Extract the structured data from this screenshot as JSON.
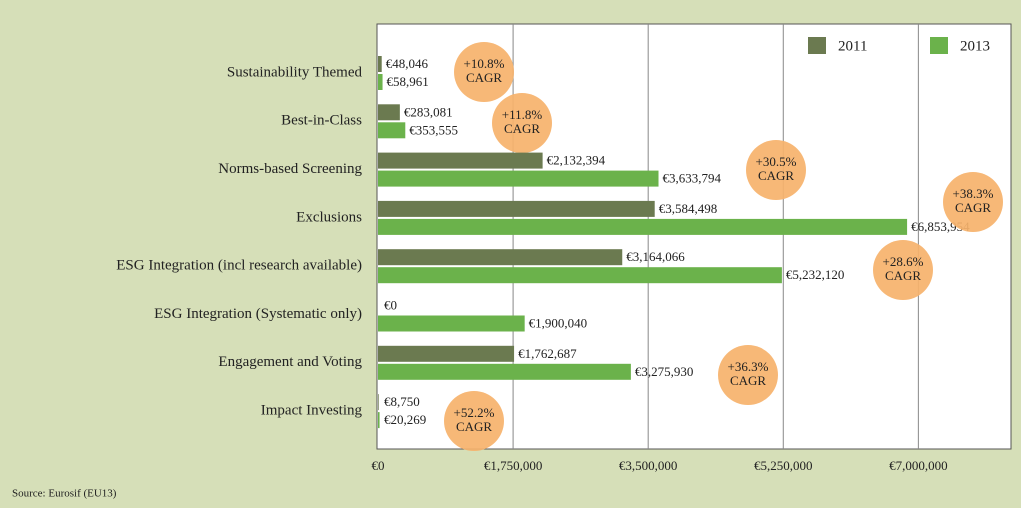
{
  "chart_data": {
    "type": "bar",
    "orientation": "horizontal",
    "categories": [
      "Sustainability Themed",
      "Best-in-Class",
      "Norms-based Screening",
      "Exclusions",
      "ESG Integration (incl research available)",
      "ESG Integration (Systematic only)",
      "Engagement and Voting",
      "Impact Investing"
    ],
    "series": [
      {
        "name": "2011",
        "color": "#6b7a50",
        "values": [
          48046,
          283081,
          2132394,
          3584498,
          3164066,
          0,
          1762687,
          8750
        ],
        "value_labels": [
          "€48,046",
          "€283,081",
          "€2,132,394",
          "€3,584,498",
          "€3,164,066",
          "€0",
          "€1,762,687",
          "€8,750"
        ]
      },
      {
        "name": "2013",
        "color": "#6bb24b",
        "values": [
          58961,
          353555,
          3633794,
          6853954,
          5232120,
          1900040,
          3275930,
          20269
        ],
        "value_labels": [
          "€58,961",
          "€353,555",
          "€3,633,794",
          "€6,853,954",
          "€5,232,120",
          "€1,900,040",
          "€3,275,930",
          "€20,269"
        ]
      }
    ],
    "annotations": [
      {
        "lines": [
          "+10.8%",
          "CAGR"
        ]
      },
      {
        "lines": [
          "+11.8%",
          "CAGR"
        ]
      },
      {
        "lines": [
          "+30.5%",
          "CAGR"
        ]
      },
      {
        "lines": [
          "+38.3%",
          "CAGR"
        ]
      },
      {
        "lines": [
          "+28.6%",
          "CAGR"
        ]
      },
      null,
      {
        "lines": [
          "+36.3%",
          "CAGR"
        ]
      },
      {
        "lines": [
          "+52.2%",
          "CAGR"
        ]
      }
    ],
    "xlim": [
      0,
      8200000
    ],
    "xticks": [
      {
        "value": 0,
        "label": "€0"
      },
      {
        "value": 1750000,
        "label": "€1,750,000"
      },
      {
        "value": 3500000,
        "label": "€3,500,000"
      },
      {
        "value": 5250000,
        "label": "€5,250,000"
      },
      {
        "value": 7000000,
        "label": "€7,000,000"
      }
    ],
    "grid": true,
    "legend": "upper right",
    "source": "Source: Eurosif (EU13)"
  }
}
